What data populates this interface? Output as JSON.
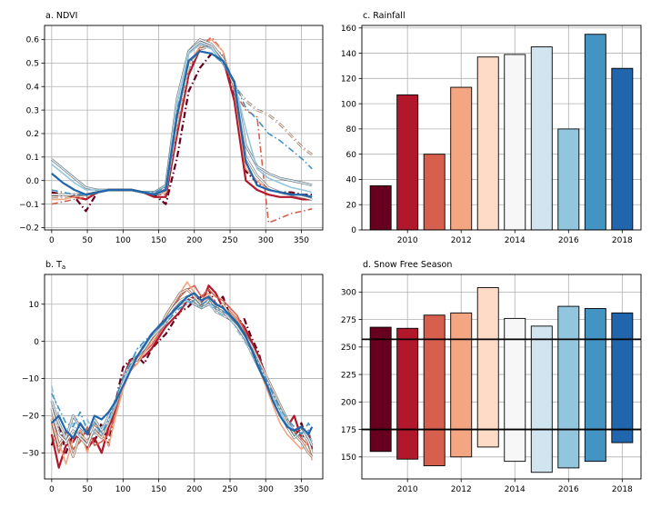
{
  "colors": {
    "y2009": "#67001f",
    "y2010": "#b2182b",
    "y2011": "#d6604d",
    "y2012": "#f4a582",
    "y2013": "#fddbc7",
    "y2014": "#f7f7f7",
    "y2015": "#d1e5f0",
    "y2016": "#92c5de",
    "y2017": "#4393c3",
    "y2018": "#2166ac",
    "grid": "#b0b0b0",
    "mean": "#1f4e8c"
  },
  "chart_data": [
    {
      "id": "ndvi",
      "type": "line",
      "title": "a. NDVI",
      "xlabel": "",
      "ylabel": "",
      "xlim": [
        -10,
        380
      ],
      "ylim": [
        -0.21,
        0.66
      ],
      "xticks": [
        0,
        50,
        100,
        150,
        200,
        250,
        300,
        350
      ],
      "yticks": [
        -0.2,
        -0.1,
        0.0,
        0.1,
        0.2,
        0.3,
        0.4,
        0.5,
        0.6
      ],
      "ytick_labels": [
        "−0.2",
        "−0.1",
        "0.0",
        "0.1",
        "0.2",
        "0.3",
        "0.4",
        "0.5",
        "0.6"
      ],
      "grid": true,
      "x": [
        0,
        16,
        32,
        48,
        64,
        80,
        96,
        112,
        128,
        144,
        160,
        176,
        192,
        208,
        224,
        240,
        256,
        272,
        288,
        304,
        320,
        336,
        352,
        365
      ],
      "series": [
        {
          "name": "2009",
          "style": "dashdot",
          "values": [
            -0.05,
            -0.06,
            -0.07,
            -0.13,
            -0.05,
            -0.04,
            -0.04,
            -0.04,
            -0.05,
            -0.06,
            -0.1,
            0.1,
            0.38,
            0.48,
            0.54,
            0.53,
            0.35,
            0.04,
            -0.01,
            -0.03,
            -0.05,
            -0.05,
            -0.06,
            -0.06
          ]
        },
        {
          "name": "2010",
          "style": "solid",
          "values": [
            -0.06,
            -0.06,
            -0.07,
            -0.08,
            -0.05,
            -0.04,
            -0.04,
            -0.04,
            -0.05,
            -0.07,
            -0.07,
            0.2,
            0.45,
            0.56,
            0.58,
            0.52,
            0.34,
            0.0,
            -0.04,
            -0.06,
            -0.07,
            -0.07,
            -0.08,
            -0.08
          ]
        },
        {
          "name": "2011",
          "style": "dashdot",
          "values": [
            -0.1,
            -0.09,
            -0.08,
            -0.07,
            -0.05,
            -0.04,
            -0.04,
            -0.04,
            -0.05,
            -0.06,
            -0.06,
            0.22,
            0.47,
            0.57,
            0.61,
            0.55,
            0.38,
            0.3,
            0.27,
            -0.18,
            -0.16,
            -0.14,
            -0.13,
            -0.12
          ]
        },
        {
          "name": "2012",
          "style": "solid",
          "values": [
            -0.08,
            -0.08,
            -0.07,
            -0.06,
            -0.05,
            -0.04,
            -0.04,
            -0.04,
            -0.05,
            -0.06,
            -0.05,
            0.25,
            0.5,
            0.57,
            0.6,
            0.55,
            0.38,
            0.05,
            0.0,
            -0.04,
            -0.05,
            -0.06,
            -0.07,
            -0.08
          ]
        },
        {
          "name": "2013",
          "style": "dashdot",
          "values": [
            -0.07,
            -0.07,
            -0.06,
            -0.06,
            -0.05,
            -0.04,
            -0.04,
            -0.04,
            -0.05,
            -0.06,
            -0.05,
            0.24,
            0.48,
            0.56,
            0.57,
            0.53,
            0.4,
            0.34,
            0.3,
            0.28,
            0.24,
            0.19,
            0.14,
            0.11
          ]
        },
        {
          "name": "2014",
          "style": "solid",
          "values": [
            -0.06,
            -0.06,
            -0.06,
            -0.06,
            -0.05,
            -0.04,
            -0.04,
            -0.04,
            -0.05,
            -0.05,
            -0.03,
            0.3,
            0.55,
            0.6,
            0.58,
            0.52,
            0.4,
            0.1,
            0.02,
            -0.03,
            -0.05,
            -0.06,
            -0.07,
            -0.08
          ]
        },
        {
          "name": "2015",
          "style": "solid",
          "values": [
            0.09,
            0.05,
            0.01,
            -0.03,
            -0.04,
            -0.04,
            -0.04,
            -0.04,
            -0.05,
            -0.05,
            -0.02,
            0.35,
            0.55,
            0.59,
            0.57,
            0.5,
            0.42,
            0.15,
            0.06,
            0.03,
            0.01,
            0.0,
            -0.01,
            -0.02
          ]
        },
        {
          "name": "2016",
          "style": "solid",
          "values": [
            0.07,
            0.03,
            -0.01,
            -0.04,
            -0.04,
            -0.04,
            -0.04,
            -0.04,
            -0.05,
            -0.05,
            -0.02,
            0.33,
            0.54,
            0.58,
            0.56,
            0.5,
            0.42,
            0.22,
            0.05,
            0.01,
            -0.01,
            -0.03,
            -0.04,
            -0.05
          ]
        },
        {
          "name": "2017",
          "style": "dashdot",
          "values": [
            -0.04,
            -0.05,
            -0.06,
            -0.06,
            -0.05,
            -0.04,
            -0.04,
            -0.04,
            -0.05,
            -0.05,
            -0.03,
            0.3,
            0.5,
            0.55,
            0.54,
            0.5,
            0.42,
            0.31,
            0.26,
            0.2,
            0.17,
            0.13,
            0.09,
            0.05
          ]
        },
        {
          "name": "2018",
          "style": "solid",
          "values": [
            0.03,
            -0.01,
            -0.04,
            -0.06,
            -0.05,
            -0.04,
            -0.04,
            -0.04,
            -0.05,
            -0.06,
            -0.04,
            0.28,
            0.51,
            0.55,
            0.54,
            0.51,
            0.42,
            0.08,
            -0.02,
            -0.04,
            -0.05,
            -0.06,
            -0.06,
            -0.07
          ]
        }
      ]
    },
    {
      "id": "rainfall",
      "type": "bar",
      "title": "c. Rainfall",
      "xlabel": "",
      "ylabel": "",
      "categories": [
        2009,
        2010,
        2011,
        2012,
        2013,
        2014,
        2015,
        2016,
        2017,
        2018
      ],
      "values": [
        35,
        107,
        60,
        113,
        137,
        139,
        145,
        80,
        155,
        128
      ],
      "xlim": [
        2008.3,
        2018.7
      ],
      "ylim": [
        0,
        162
      ],
      "xticks": [
        2010,
        2012,
        2014,
        2016,
        2018
      ],
      "yticks": [
        0,
        20,
        40,
        60,
        80,
        100,
        120,
        140,
        160
      ],
      "grid": true
    },
    {
      "id": "ta",
      "type": "line",
      "title": "b. T",
      "title_sub": "a",
      "xlabel": "",
      "ylabel": "",
      "xlim": [
        -10,
        380
      ],
      "ylim": [
        -37,
        18
      ],
      "xticks": [
        0,
        50,
        100,
        150,
        200,
        250,
        300,
        350
      ],
      "yticks": [
        -30,
        -20,
        -10,
        0,
        10
      ],
      "ytick_labels": [
        "−30",
        "−20",
        "−10",
        "0",
        "10"
      ],
      "grid": true,
      "x": [
        0,
        10,
        20,
        30,
        40,
        50,
        60,
        70,
        80,
        90,
        100,
        110,
        120,
        130,
        140,
        150,
        160,
        170,
        180,
        190,
        200,
        210,
        220,
        230,
        240,
        250,
        260,
        270,
        280,
        290,
        300,
        310,
        320,
        330,
        340,
        350,
        360,
        365
      ],
      "series": [
        {
          "name": "2009",
          "style": "dashdot",
          "values": [
            -28,
            -22,
            -30,
            -25,
            -26,
            -24,
            -27,
            -22,
            -28,
            -16,
            -7,
            -5,
            -4,
            -6,
            -2,
            0,
            2,
            5,
            8,
            9,
            11,
            12,
            14,
            10,
            12,
            7,
            5,
            6,
            1,
            -3,
            -10,
            -15,
            -18,
            -22,
            -26,
            -22,
            -28,
            -30
          ]
        },
        {
          "name": "2010",
          "style": "solid",
          "values": [
            -25,
            -34,
            -28,
            -27,
            -24,
            -29,
            -26,
            -30,
            -23,
            -18,
            -10,
            -5,
            -5,
            -4,
            -2,
            1,
            4,
            6,
            8,
            11,
            12,
            10,
            15,
            13,
            9,
            8,
            6,
            4,
            0,
            -4,
            -9,
            -14,
            -19,
            -23,
            -20,
            -26,
            -24,
            -29
          ]
        },
        {
          "name": "2011",
          "style": "solid",
          "values": [
            -22,
            -30,
            -24,
            -29,
            -27,
            -23,
            -28,
            -27,
            -25,
            -19,
            -12,
            -7,
            -6,
            -3,
            -1,
            2,
            5,
            9,
            12,
            14,
            15,
            12,
            14,
            12,
            11,
            9,
            7,
            3,
            -1,
            -6,
            -11,
            -16,
            -20,
            -22,
            -24,
            -26,
            -28,
            -31
          ]
        },
        {
          "name": "2012",
          "style": "solid",
          "values": [
            -20,
            -27,
            -33,
            -26,
            -24,
            -30,
            -22,
            -25,
            -28,
            -20,
            -13,
            -8,
            -6,
            -3,
            0,
            3,
            6,
            10,
            13,
            16,
            13,
            11,
            13,
            10,
            9,
            8,
            6,
            2,
            -2,
            -7,
            -12,
            -17,
            -22,
            -25,
            -27,
            -29,
            -27,
            -32
          ]
        },
        {
          "name": "2013",
          "style": "solid",
          "values": [
            -21,
            -28,
            -25,
            -31,
            -25,
            -27,
            -24,
            -26,
            -22,
            -17,
            -11,
            -6,
            -5,
            -2,
            1,
            3,
            7,
            10,
            13,
            14,
            12,
            10,
            12,
            9,
            10,
            7,
            5,
            2,
            -1,
            -5,
            -9,
            -13,
            -17,
            -21,
            -25,
            -27,
            -30,
            -31
          ]
        },
        {
          "name": "2014",
          "style": "solid",
          "values": [
            -18,
            -25,
            -27,
            -24,
            -26,
            -28,
            -23,
            -25,
            -21,
            -16,
            -10,
            -6,
            -4,
            -2,
            1,
            4,
            6,
            9,
            11,
            12,
            11,
            9,
            11,
            8,
            7,
            6,
            4,
            1,
            -3,
            -7,
            -11,
            -15,
            -19,
            -23,
            -26,
            -24,
            -27,
            -30
          ]
        },
        {
          "name": "2015",
          "style": "solid",
          "values": [
            -16,
            -22,
            -26,
            -20,
            -23,
            -25,
            -21,
            -24,
            -20,
            -16,
            -11,
            -7,
            -4,
            -2,
            1,
            3,
            5,
            8,
            10,
            11,
            10,
            9,
            10,
            9,
            8,
            6,
            4,
            1,
            -2,
            -6,
            -10,
            -14,
            -18,
            -22,
            -24,
            -23,
            -26,
            -28
          ]
        },
        {
          "name": "2016",
          "style": "dashdot",
          "values": [
            -12,
            -20,
            -24,
            -22,
            -26,
            -21,
            -25,
            -23,
            -22,
            -17,
            -12,
            -7,
            -2,
            -1,
            2,
            4,
            6,
            8,
            9,
            11,
            10,
            9,
            10,
            8,
            7,
            6,
            3,
            0,
            -3,
            -7,
            -11,
            -15,
            -19,
            -22,
            -25,
            -26,
            -24,
            -27
          ]
        },
        {
          "name": "2017",
          "style": "dashdot",
          "values": [
            -14,
            -18,
            -22,
            -23,
            -19,
            -24,
            -22,
            -25,
            -21,
            -15,
            -10,
            -6,
            -2,
            0,
            2,
            4,
            5,
            7,
            9,
            10,
            11,
            10,
            11,
            9,
            8,
            7,
            5,
            2,
            -2,
            -6,
            -10,
            -14,
            -18,
            -21,
            -23,
            -25,
            -22,
            -24
          ]
        },
        {
          "name": "2018",
          "style": "solid",
          "values": [
            -22,
            -20,
            -24,
            -26,
            -22,
            -25,
            -20,
            -21,
            -19,
            -16,
            -12,
            -8,
            -4,
            -1,
            2,
            4,
            6,
            8,
            10,
            12,
            13,
            11,
            12,
            10,
            9,
            7,
            5,
            2,
            -2,
            -7,
            -11,
            -16,
            -20,
            -23,
            -24,
            -23,
            -25,
            -23
          ]
        }
      ]
    },
    {
      "id": "snowfree",
      "type": "bar",
      "title": "d. Snow Free Season",
      "xlabel": "",
      "ylabel": "",
      "categories": [
        2009,
        2010,
        2011,
        2012,
        2013,
        2014,
        2015,
        2016,
        2017,
        2018
      ],
      "starts": [
        155,
        148,
        142,
        150,
        159,
        146,
        136,
        140,
        146,
        163
      ],
      "ends": [
        268,
        267,
        279,
        281,
        304,
        276,
        269,
        287,
        285,
        281
      ],
      "reference_lines": [
        175,
        257
      ],
      "xlim": [
        2008.3,
        2018.7
      ],
      "ylim": [
        130,
        316
      ],
      "xticks": [
        2010,
        2012,
        2014,
        2016,
        2018
      ],
      "yticks": [
        150,
        175,
        200,
        225,
        250,
        275,
        300
      ],
      "grid": true
    }
  ]
}
